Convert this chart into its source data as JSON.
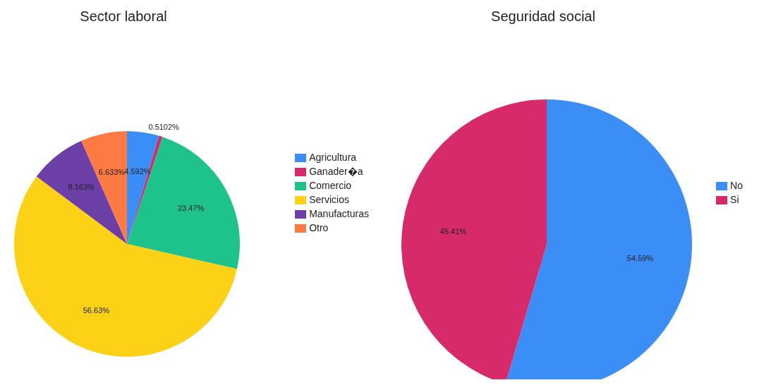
{
  "chart_data": [
    {
      "type": "pie",
      "title": "Sector laboral",
      "categories": [
        "Agricultura",
        "Ganader�a",
        "Comercio",
        "Servicios",
        "Manufacturas",
        "Otro"
      ],
      "values": [
        4.592,
        0.5102,
        23.47,
        56.63,
        8.163,
        6.633
      ],
      "value_labels": [
        "4.592%",
        "0.5102%",
        "23.47%",
        "56.63%",
        "8.163%",
        "6.633%"
      ],
      "colors": [
        "#3a8ef6",
        "#d62a6a",
        "#1ec28b",
        "#fcd116",
        "#6c3fa6",
        "#fd7a45"
      ],
      "legend": "right"
    },
    {
      "type": "pie",
      "title": "Seguridad social",
      "categories": [
        "No",
        "Si"
      ],
      "values": [
        54.59,
        45.41
      ],
      "value_labels": [
        "54.59%",
        "45.41%"
      ],
      "colors": [
        "#3a8ef6",
        "#d62a6a"
      ],
      "legend": "right"
    }
  ]
}
